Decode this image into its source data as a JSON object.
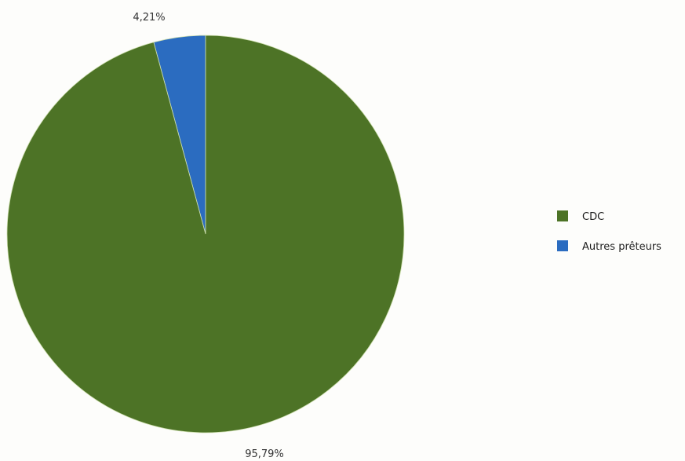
{
  "chart_data": {
    "type": "pie",
    "title": "",
    "slices": [
      {
        "label": "CDC",
        "value": 95.79,
        "value_label": "95,79%",
        "color": "#4d7326"
      },
      {
        "label": "Autres prêteurs",
        "value": 4.21,
        "value_label": "4,21%",
        "color": "#2b6cc0"
      }
    ],
    "legend_position": "right",
    "start_angle": "12 o'clock",
    "direction": "counterclockwise for Autres prêteurs, then CDC"
  }
}
